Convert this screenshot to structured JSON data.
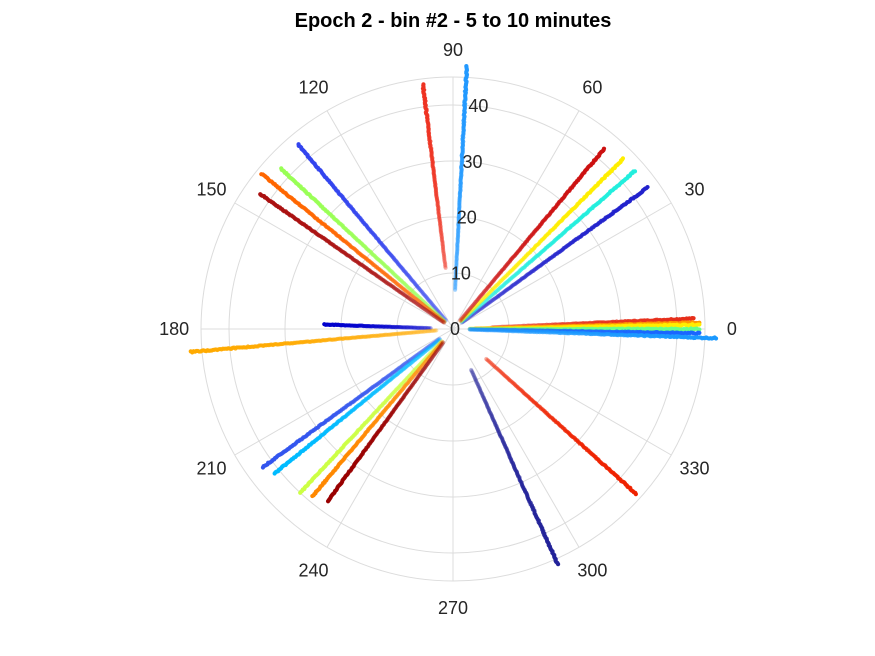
{
  "chart_data": {
    "type": "scatter",
    "projection": "polar",
    "title": "Epoch 2 - bin #2 - 5 to 10 minutes",
    "theta_unit": "degrees",
    "theta_ticks": [
      "0",
      "30",
      "60",
      "90",
      "120",
      "150",
      "180",
      "210",
      "240",
      "270",
      "300",
      "330"
    ],
    "r_ticks": [
      "0",
      "10",
      "20",
      "30",
      "40"
    ],
    "rlim": [
      0,
      45
    ],
    "grid": true,
    "colormap": "jet",
    "series": [
      {
        "theta": 2.5,
        "r_min": 7,
        "r_max": 43,
        "color": "#e62e1a"
      },
      {
        "theta": 1.5,
        "r_min": 4,
        "r_max": 44,
        "color": "#ff9900"
      },
      {
        "theta": 1.0,
        "r_min": 3,
        "r_max": 44,
        "color": "#ffee00"
      },
      {
        "theta": 0.0,
        "r_min": 3,
        "r_max": 44,
        "color": "#66ff88"
      },
      {
        "theta": -1.0,
        "r_min": 3,
        "r_max": 44,
        "color": "#1a66ff"
      },
      {
        "theta": -2.0,
        "r_min": 3,
        "r_max": 47,
        "color": "#1a99ff"
      },
      {
        "theta": 36.0,
        "r_min": 2,
        "r_max": 43,
        "color": "#2222cc"
      },
      {
        "theta": 41.0,
        "r_min": 2,
        "r_max": 43,
        "color": "#22eedd"
      },
      {
        "theta": 45.0,
        "r_min": 2,
        "r_max": 43,
        "color": "#ffee00"
      },
      {
        "theta": 50.0,
        "r_min": 2,
        "r_max": 42,
        "color": "#cc1111"
      },
      {
        "theta": 87.0,
        "r_min": 7,
        "r_max": 47,
        "color": "#2299ff"
      },
      {
        "theta": 97.0,
        "r_min": 11,
        "r_max": 44,
        "color": "#ee3322"
      },
      {
        "theta": 130.0,
        "r_min": 2,
        "r_max": 43,
        "color": "#3344ee"
      },
      {
        "theta": 137.0,
        "r_min": 2,
        "r_max": 42,
        "color": "#99ff55"
      },
      {
        "theta": 141.0,
        "r_min": 2,
        "r_max": 44,
        "color": "#ff6600"
      },
      {
        "theta": 145.0,
        "r_min": 2,
        "r_max": 42,
        "color": "#aa1111"
      },
      {
        "theta": 178.0,
        "r_min": 4,
        "r_max": 23,
        "color": "#0000cc"
      },
      {
        "theta": 185.0,
        "r_min": 3,
        "r_max": 47,
        "color": "#ffaa00"
      },
      {
        "theta": 216.0,
        "r_min": 3,
        "r_max": 42,
        "color": "#3355ee"
      },
      {
        "theta": 219.0,
        "r_min": 3,
        "r_max": 41,
        "color": "#00bbff"
      },
      {
        "theta": 227.0,
        "r_min": 3,
        "r_max": 40,
        "color": "#ccff44"
      },
      {
        "theta": 230.0,
        "r_min": 3,
        "r_max": 39,
        "color": "#ff8800"
      },
      {
        "theta": 234.0,
        "r_min": 3,
        "r_max": 38,
        "color": "#990000"
      },
      {
        "theta": 294.0,
        "r_min": 8,
        "r_max": 46,
        "color": "#222299"
      },
      {
        "theta": 318.0,
        "r_min": 8,
        "r_max": 44,
        "color": "#ee2200"
      }
    ]
  }
}
